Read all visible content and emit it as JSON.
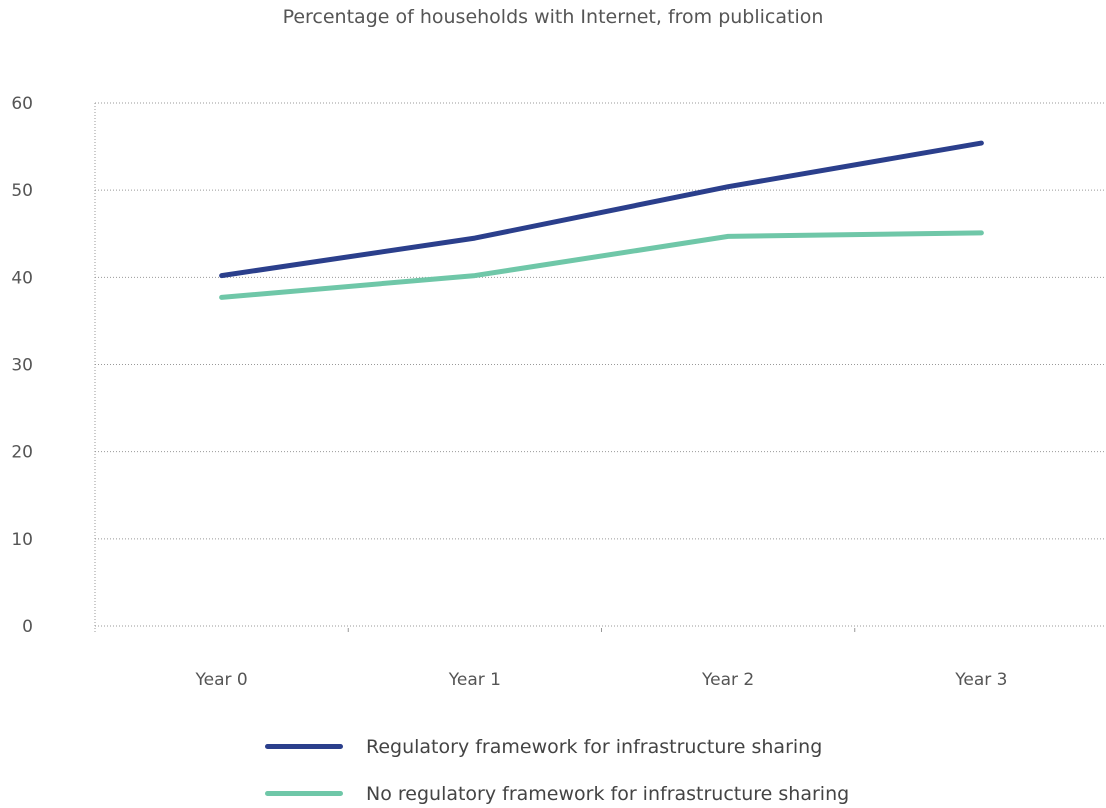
{
  "chart_data": {
    "type": "line",
    "title": "Percentage of households with Internet, from publication",
    "xlabel": "",
    "ylabel": "",
    "categories": [
      "Year 0",
      "Year 1",
      "Year 2",
      "Year 3"
    ],
    "ylim": [
      0,
      60
    ],
    "yticks": [
      "0",
      "10",
      "20",
      "30",
      "40",
      "50",
      "60"
    ],
    "grid": true,
    "legend_position": "bottom",
    "series": [
      {
        "name": "Regulatory framework for infrastructure sharing",
        "values": [
          40.2,
          44.5,
          50.4,
          55.4
        ],
        "color": "#2b3f8c"
      },
      {
        "name": "No regulatory framework for infrastructure sharing",
        "values": [
          37.7,
          40.2,
          44.7,
          45.1
        ],
        "color": "#6fc7a8"
      }
    ]
  }
}
